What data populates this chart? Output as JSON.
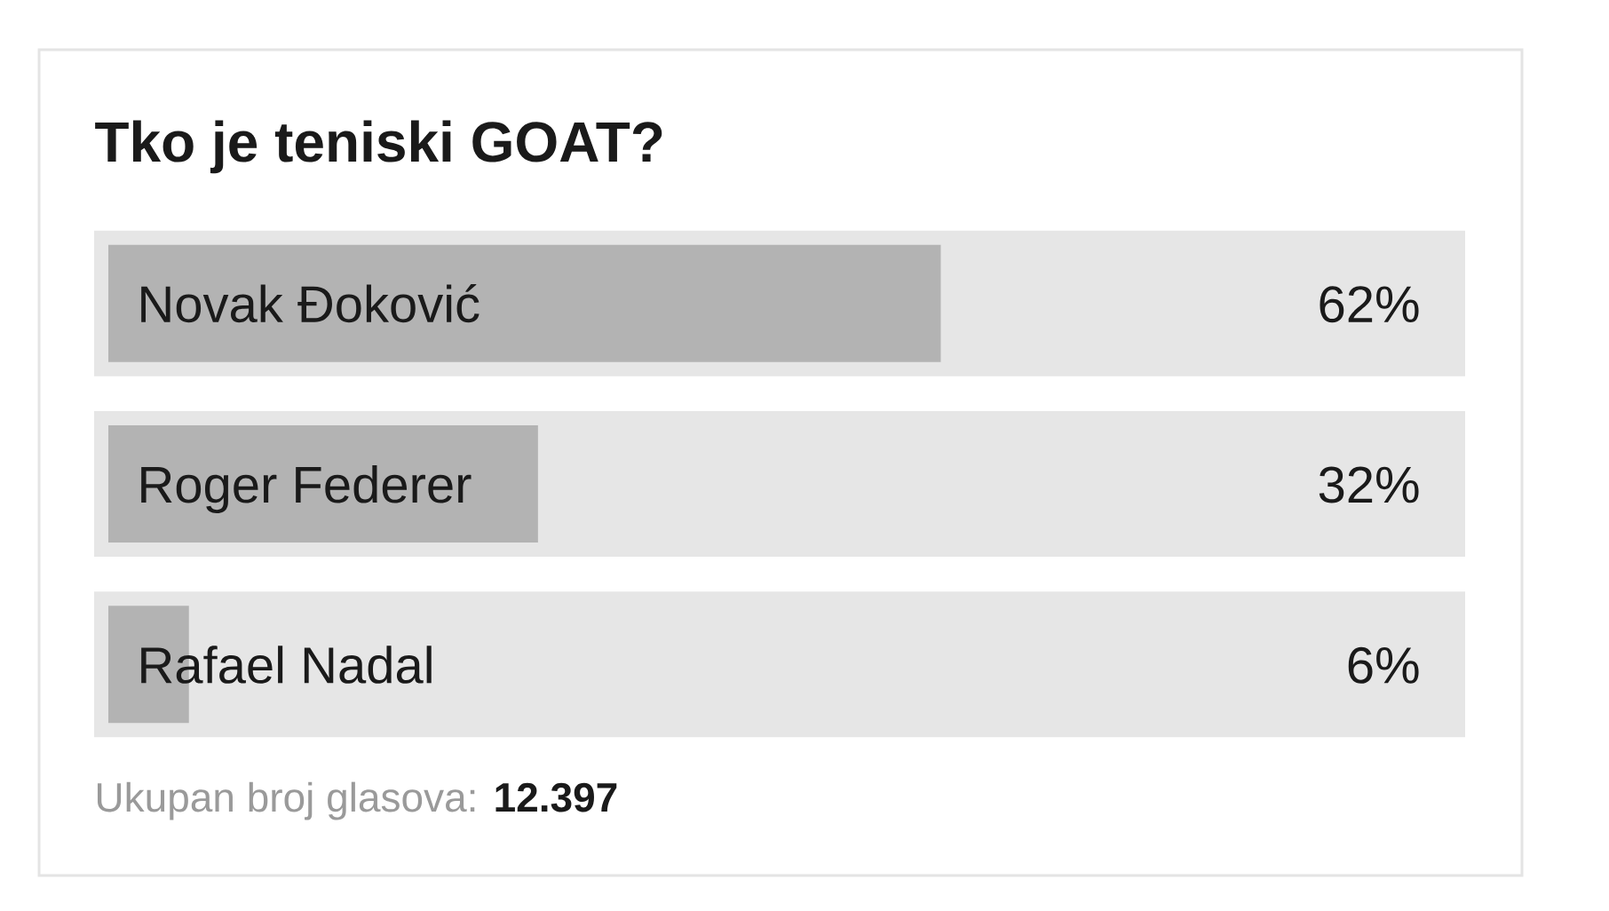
{
  "chart_data": {
    "type": "bar",
    "orientation": "horizontal",
    "title": "Tko je teniski GOAT?",
    "categories": [
      "Novak Đoković",
      "Roger Federer",
      "Rafael Nadal"
    ],
    "values": [
      62,
      32,
      6
    ],
    "value_labels": [
      "62%",
      "32%",
      "6%"
    ],
    "color": "#b3b3b3",
    "tick_labels": "y",
    "annotations": [
      "Ukupan broj glasova: **12.397**"
    ]
  }
}
